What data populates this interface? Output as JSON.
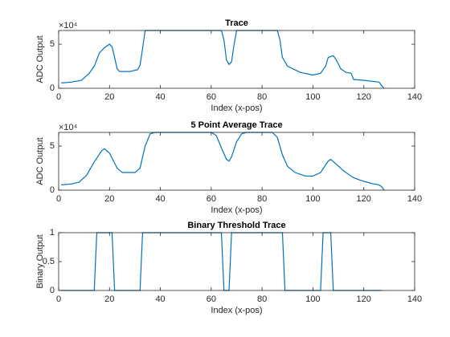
{
  "chart_data": [
    {
      "type": "line",
      "title": "Trace",
      "xlabel": "Index (x-pos)",
      "ylabel": "ADC Output",
      "y_exponent": "×10⁴",
      "color": "#0072bd",
      "x": [
        1,
        5,
        9,
        12,
        14,
        16,
        18,
        20,
        21,
        22,
        23,
        24,
        28,
        31,
        32,
        33,
        34,
        40,
        60,
        64,
        65,
        66,
        67,
        68,
        69,
        70,
        80,
        86,
        87,
        88,
        90,
        95,
        100,
        103,
        105,
        106,
        108,
        109,
        111,
        113,
        115,
        116,
        120,
        126,
        127,
        128
      ],
      "values": [
        6000,
        7000,
        9000,
        17000,
        25000,
        40000,
        46000,
        50000,
        47000,
        35000,
        22000,
        19000,
        19000,
        21000,
        26000,
        45000,
        65535,
        65535,
        65535,
        65535,
        55000,
        32000,
        27000,
        30000,
        50000,
        65535,
        65535,
        65535,
        55000,
        35000,
        25000,
        18000,
        15000,
        17000,
        25000,
        35000,
        37000,
        33000,
        22000,
        18000,
        17000,
        10000,
        9000,
        7000,
        3000,
        0
      ],
      "xlim": [
        0,
        140
      ],
      "xticks": [
        0,
        20,
        40,
        60,
        80,
        100,
        120,
        140
      ],
      "ylim": [
        0,
        65535
      ],
      "yticks": [
        0,
        {
          "value": 50000,
          "label": "5"
        }
      ]
    },
    {
      "type": "line",
      "title": "5 Point Average Trace",
      "xlabel": "Index (x-pos)",
      "ylabel": "ADC Output",
      "y_exponent": "×10⁴",
      "color": "#0072bd",
      "x": [
        1,
        5,
        8,
        11,
        14,
        17,
        18,
        20,
        23,
        25,
        30,
        32,
        34,
        36,
        38,
        60,
        62,
        64,
        66,
        67,
        68,
        70,
        72,
        74,
        84,
        86,
        88,
        90,
        93,
        97,
        100,
        103,
        106,
        107,
        109,
        112,
        116,
        120,
        124,
        126,
        127,
        128
      ],
      "values": [
        6000,
        7000,
        9000,
        17000,
        32000,
        45000,
        47000,
        42000,
        25000,
        20000,
        20000,
        25000,
        50000,
        64000,
        65535,
        65535,
        62000,
        48000,
        35000,
        33000,
        38000,
        55000,
        64000,
        65535,
        65535,
        60000,
        40000,
        27000,
        20000,
        16000,
        16000,
        20000,
        33000,
        35000,
        30000,
        22000,
        14000,
        10000,
        7000,
        6000,
        4000,
        0
      ],
      "xlim": [
        0,
        140
      ],
      "xticks": [
        0,
        20,
        40,
        60,
        80,
        100,
        120,
        140
      ],
      "ylim": [
        0,
        65535
      ],
      "yticks": [
        0,
        {
          "value": 50000,
          "label": "5"
        }
      ]
    },
    {
      "type": "line",
      "title": "Binary Threshold Trace",
      "xlabel": "Index (x-pos)",
      "ylabel": "Binary Output",
      "color": "#0072bd",
      "x": [
        1,
        14,
        15,
        21,
        22,
        32,
        33,
        64,
        65,
        67,
        68,
        88,
        89,
        103,
        104,
        107,
        108,
        127
      ],
      "values": [
        0,
        0,
        1,
        1,
        0,
        0,
        1,
        1,
        0,
        0,
        1,
        1,
        0,
        0,
        1,
        1,
        0,
        0
      ],
      "xlim": [
        0,
        140
      ],
      "xticks": [
        0,
        20,
        40,
        60,
        80,
        100,
        120,
        140
      ],
      "ylim": [
        0,
        1
      ],
      "yticks": [
        0,
        0.5,
        1
      ]
    }
  ]
}
